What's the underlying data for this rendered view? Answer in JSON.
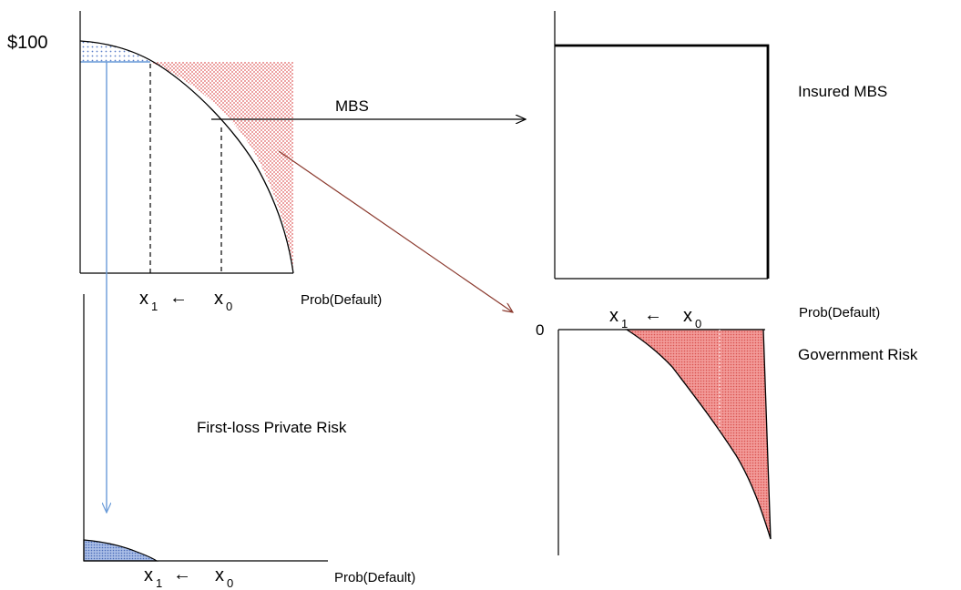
{
  "top_left": {
    "y_value_label": "$100",
    "title": "MBS",
    "x_axis_label": "Prob(Default)",
    "x1_main": "x",
    "x1_sub": "1",
    "arrow_glyph": "←",
    "x0_main": "x",
    "x0_sub": "0"
  },
  "top_right": {
    "title": "Insured MBS",
    "x_axis_label": "Prob(Default)"
  },
  "bottom_right": {
    "zero_label": "0",
    "title": "Government Risk",
    "x1_main": "x",
    "x1_sub": "1",
    "arrow_glyph": "←",
    "x0_main": "x",
    "x0_sub": "0"
  },
  "bottom_left": {
    "title": "First-loss Private Risk",
    "x_axis_label": "Prob(Default)",
    "x1_main": "x",
    "x1_sub": "1",
    "arrow_glyph": "←",
    "x0_main": "x",
    "x0_sub": "0"
  },
  "colors": {
    "red_fill": "#f08a8a",
    "red_dot": "#e0605f",
    "blue_fill": "#9fb3e0",
    "blue_dot": "#5a7ec8",
    "blue_arrow": "#6a9bd8",
    "dark_red_arrow": "#8b3a2e",
    "axis": "#000000"
  }
}
